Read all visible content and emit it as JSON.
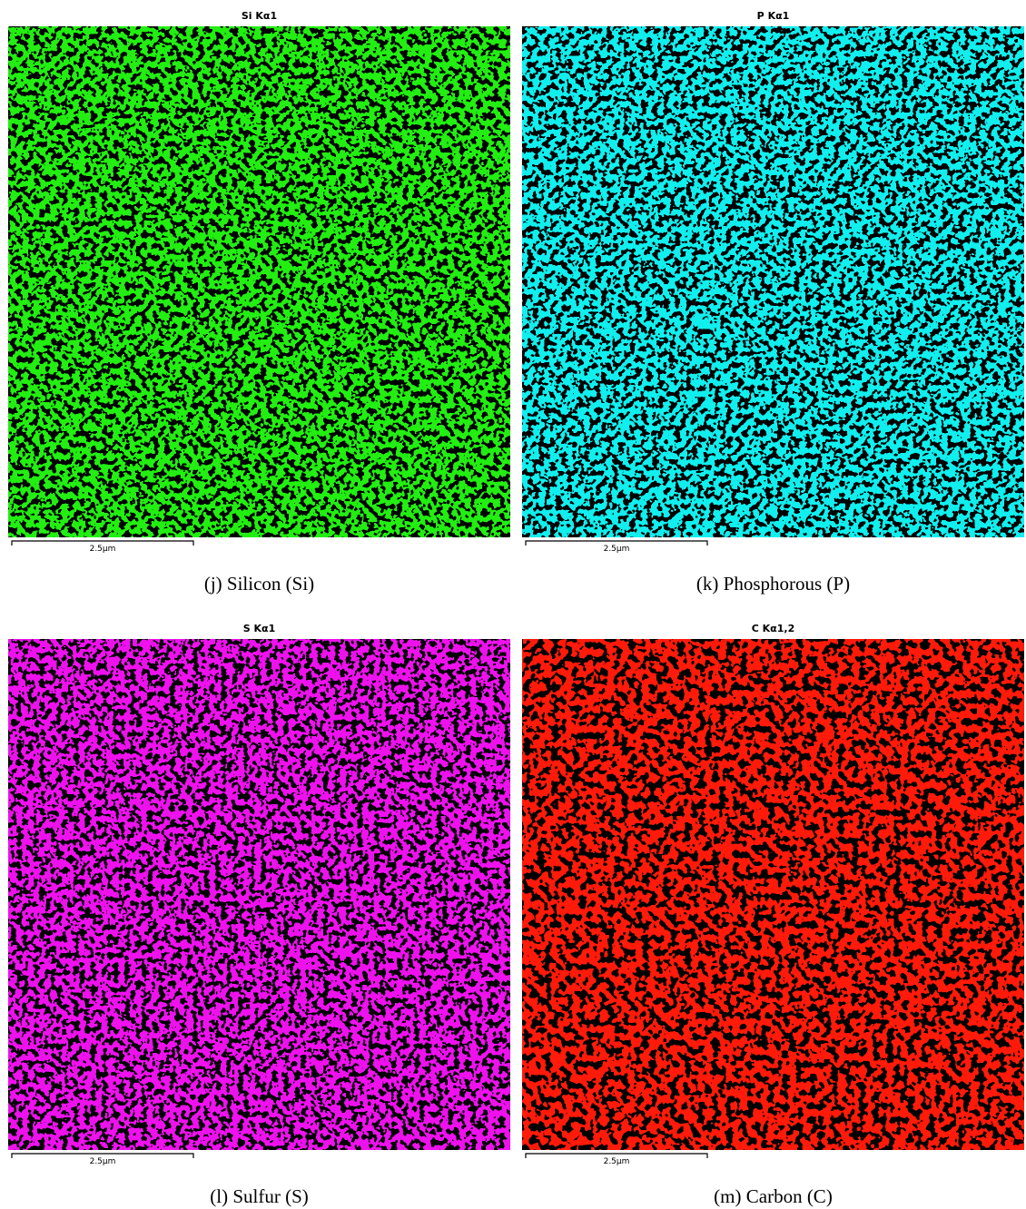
{
  "panels": [
    {
      "title": "Si Kα1",
      "scale_label": "2.5µm",
      "caption": "(j)  Silicon (Si)",
      "color": "#22ee11"
    },
    {
      "title": "P Kα1",
      "scale_label": "2.5µm",
      "caption": "(k)  Phosphorous (P)",
      "color": "#11eeee"
    },
    {
      "title": "S Kα1",
      "scale_label": "2.5µm",
      "caption": "(l)  Sulfur (S)",
      "color": "#ee11ee"
    },
    {
      "title": "C Kα1,2",
      "scale_label": "2.5µm",
      "caption": "(m)  Carbon (C)",
      "color": "#ff1a0a"
    }
  ]
}
